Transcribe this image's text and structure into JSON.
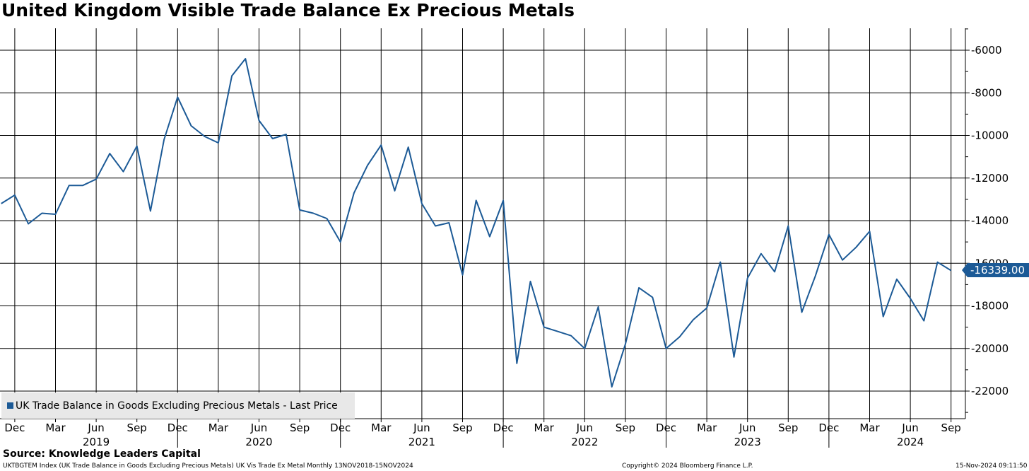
{
  "header": {
    "title": "United Kingdom Visible Trade Balance Ex Precious Metals"
  },
  "legend": {
    "label": "UK Trade Balance in Goods Excluding Precious Metals - Last Price"
  },
  "last_value_label": "-16339.00",
  "footer": {
    "source": "Source: Knowledge Leaders Capital",
    "index_line": "UKTBGTEM Index (UK Trade Balance in Goods Excluding Precious Metals) UK Vis Trade Ex Metal  Monthly 13NOV2018-15NOV2024",
    "copyright": "Copyright© 2024 Bloomberg Finance L.P.",
    "timestamp": "15-Nov-2024 09:11:50"
  },
  "colors": {
    "line": "#1c5a96",
    "grid": "#000000",
    "legend_bg": "#e8e8e8"
  },
  "chart_data": {
    "type": "line",
    "title": "United Kingdom Visible Trade Balance Ex Precious Metals",
    "ylim": [
      -23000,
      -5000
    ],
    "yticks": [
      -6000,
      -8000,
      -10000,
      -12000,
      -14000,
      -16000,
      -18000,
      -20000,
      -22000
    ],
    "ytick_labels": [
      "-6000",
      "-8000",
      "-10000",
      "-12000",
      "-14000",
      "-16000",
      "-18000",
      "-20000",
      "-22000"
    ],
    "x_start": "2018-11",
    "x_end": "2024-09",
    "month_ticks": [
      {
        "date": "2018-12",
        "label": "Dec"
      },
      {
        "date": "2019-03",
        "label": "Mar"
      },
      {
        "date": "2019-06",
        "label": "Jun"
      },
      {
        "date": "2019-09",
        "label": "Sep"
      },
      {
        "date": "2019-12",
        "label": "Dec"
      },
      {
        "date": "2020-03",
        "label": "Mar"
      },
      {
        "date": "2020-06",
        "label": "Jun"
      },
      {
        "date": "2020-09",
        "label": "Sep"
      },
      {
        "date": "2020-12",
        "label": "Dec"
      },
      {
        "date": "2021-03",
        "label": "Mar"
      },
      {
        "date": "2021-06",
        "label": "Jun"
      },
      {
        "date": "2021-09",
        "label": "Sep"
      },
      {
        "date": "2021-12",
        "label": "Dec"
      },
      {
        "date": "2022-03",
        "label": "Mar"
      },
      {
        "date": "2022-06",
        "label": "Jun"
      },
      {
        "date": "2022-09",
        "label": "Sep"
      },
      {
        "date": "2022-12",
        "label": "Dec"
      },
      {
        "date": "2023-03",
        "label": "Mar"
      },
      {
        "date": "2023-06",
        "label": "Jun"
      },
      {
        "date": "2023-09",
        "label": "Sep"
      },
      {
        "date": "2023-12",
        "label": "Dec"
      },
      {
        "date": "2024-03",
        "label": "Mar"
      },
      {
        "date": "2024-06",
        "label": "Jun"
      },
      {
        "date": "2024-09",
        "label": "Sep"
      }
    ],
    "year_ticks": [
      {
        "label": "2019",
        "center": "2019-06",
        "sep": "2019-12"
      },
      {
        "label": "2020",
        "center": "2020-06",
        "sep": "2020-12"
      },
      {
        "label": "2021",
        "center": "2021-06",
        "sep": "2021-12"
      },
      {
        "label": "2022",
        "center": "2022-06",
        "sep": "2022-12"
      },
      {
        "label": "2023",
        "center": "2023-06",
        "sep": "2023-12"
      },
      {
        "label": "2024",
        "center": "2024-06",
        "sep": null
      }
    ],
    "grid": true,
    "legend_position": "bottom-left",
    "series": [
      {
        "name": "UK Trade Balance in Goods Excluding Precious Metals - Last Price",
        "dates": [
          "2018-11",
          "2018-12",
          "2019-01",
          "2019-02",
          "2019-03",
          "2019-04",
          "2019-05",
          "2019-06",
          "2019-07",
          "2019-08",
          "2019-09",
          "2019-10",
          "2019-11",
          "2019-12",
          "2020-01",
          "2020-02",
          "2020-03",
          "2020-04",
          "2020-05",
          "2020-06",
          "2020-07",
          "2020-08",
          "2020-09",
          "2020-10",
          "2020-11",
          "2020-12",
          "2021-01",
          "2021-02",
          "2021-03",
          "2021-04",
          "2021-05",
          "2021-06",
          "2021-07",
          "2021-08",
          "2021-09",
          "2021-10",
          "2021-11",
          "2021-12",
          "2022-01",
          "2022-02",
          "2022-03",
          "2022-04",
          "2022-05",
          "2022-06",
          "2022-07",
          "2022-08",
          "2022-09",
          "2022-10",
          "2022-11",
          "2022-12",
          "2023-01",
          "2023-02",
          "2023-03",
          "2023-04",
          "2023-05",
          "2023-06",
          "2023-07",
          "2023-08",
          "2023-09",
          "2023-10",
          "2023-11",
          "2023-12",
          "2024-01",
          "2024-02",
          "2024-03",
          "2024-04",
          "2024-05",
          "2024-06",
          "2024-07",
          "2024-08",
          "2024-09"
        ],
        "values": [
          -13200,
          -12800,
          -14150,
          -13650,
          -13700,
          -12350,
          -12350,
          -12050,
          -10850,
          -11700,
          -10500,
          -13550,
          -10200,
          -8200,
          -9550,
          -10050,
          -10350,
          -7200,
          -6400,
          -9300,
          -10150,
          -9950,
          -13500,
          -13650,
          -13900,
          -15000,
          -12700,
          -11400,
          -10450,
          -12600,
          -10550,
          -13200,
          -14250,
          -14100,
          -16550,
          -13050,
          -14750,
          -13050,
          -20700,
          -16850,
          -19000,
          -19200,
          -19400,
          -20000,
          -18050,
          -21800,
          -19800,
          -17150,
          -17600,
          -20000,
          -19450,
          -18650,
          -18100,
          -15950,
          -20400,
          -16700,
          -15550,
          -16400,
          -14250,
          -18300,
          -16600,
          -14650,
          -15850,
          -15250,
          -14500,
          -18500,
          -16750,
          -17650,
          -18700,
          -15950,
          -16339
        ]
      }
    ]
  }
}
